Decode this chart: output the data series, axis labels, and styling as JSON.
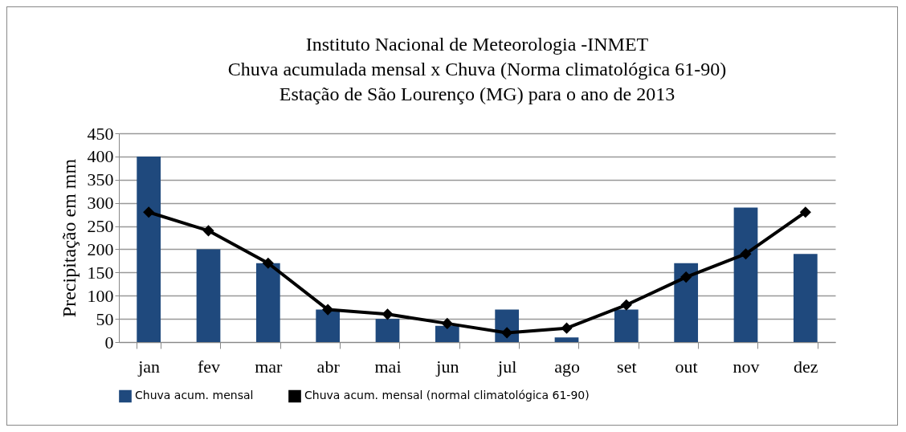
{
  "chart_data": {
    "type": "bar",
    "title": [
      "Instituto Nacional de Meteorologia -INMET",
      "Chuva acumulada mensal x Chuva (Norma climatológica 61-90)",
      "Estação de São Lourenço (MG) para o ano de 2013"
    ],
    "ylabel": "Precipitação em mm",
    "categories": [
      "jan",
      "fev",
      "mar",
      "abr",
      "mai",
      "jun",
      "jul",
      "ago",
      "set",
      "out",
      "nov",
      "dez"
    ],
    "series": [
      {
        "name": "Chuva acum. mensal",
        "color": "#1f497d",
        "values": [
          400,
          200,
          170,
          70,
          50,
          35,
          70,
          10,
          70,
          170,
          290,
          190
        ]
      },
      {
        "name": "Chuva acum. mensal (normal climatológica 61-90)",
        "type": "line",
        "color": "#000000",
        "marker": "diamond",
        "values": [
          280,
          240,
          170,
          70,
          60,
          40,
          20,
          30,
          80,
          140,
          190,
          280
        ]
      }
    ],
    "ylim": [
      0,
      450
    ],
    "yticks": [
      0,
      50,
      100,
      150,
      200,
      250,
      300,
      350,
      400,
      450
    ],
    "grid": "y",
    "legend": "bottom"
  }
}
